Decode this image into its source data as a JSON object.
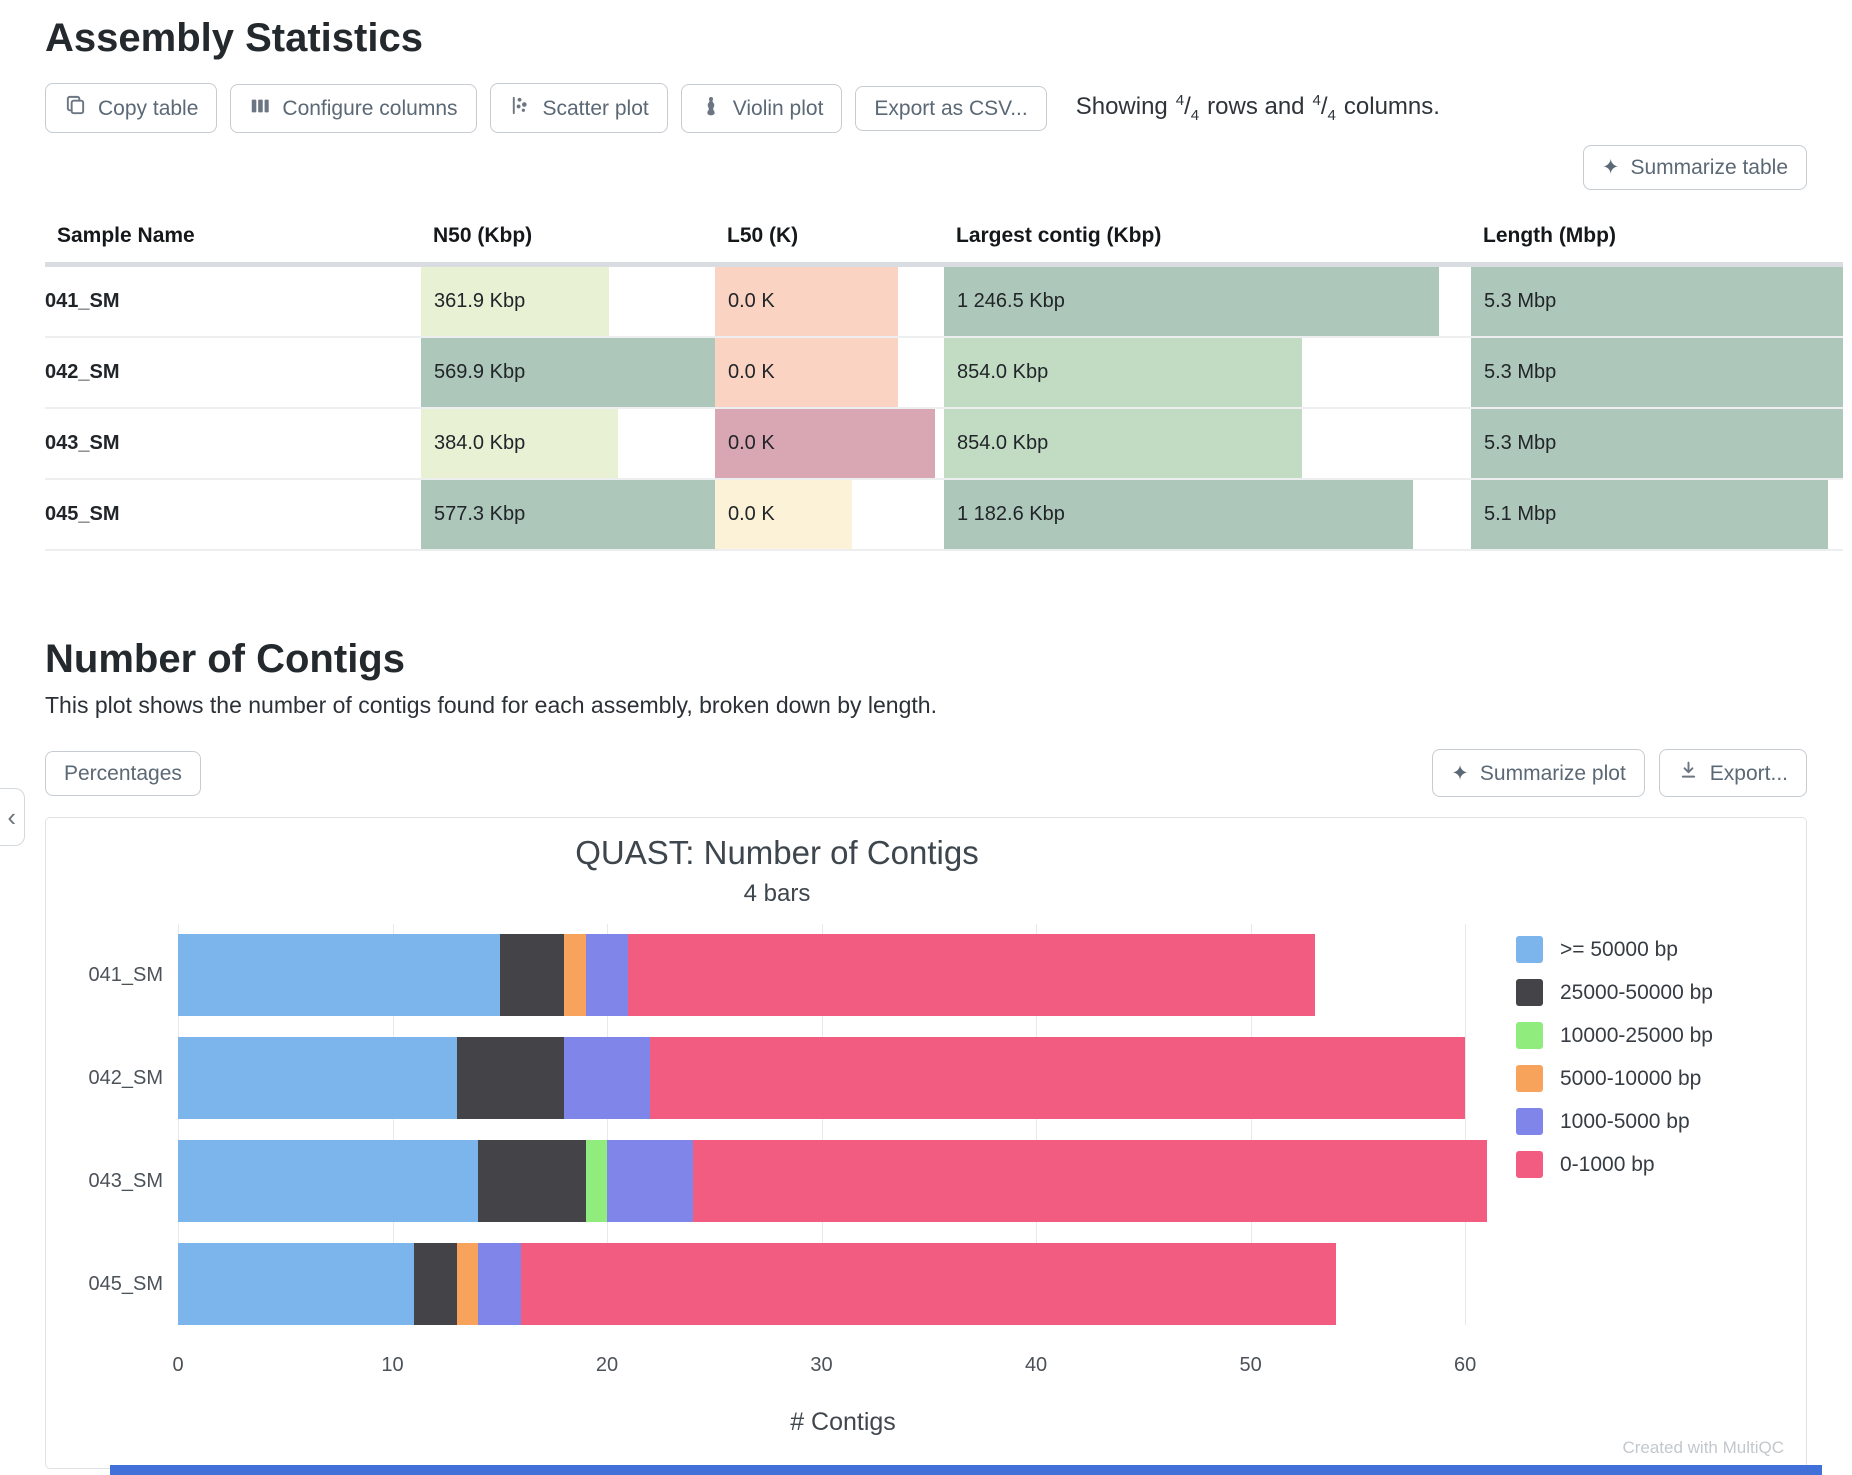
{
  "page": {
    "section1_title": "Assembly Statistics",
    "section2_title": "Number of Contigs",
    "section2_desc": "This plot shows the number of contigs found for each assembly, broken down by length.",
    "created_with": "Created with MultiQC"
  },
  "toolbar": {
    "copy_table": "Copy table",
    "configure_columns": "Configure columns",
    "scatter_plot": "Scatter plot",
    "violin_plot": "Violin plot",
    "export_csv": "Export as CSV...",
    "showing_prefix": "Showing",
    "rows_num": "4",
    "rows_den": "4",
    "rows_word": "rows and",
    "cols_num": "4",
    "cols_den": "4",
    "cols_word": "columns.",
    "summarize_table": "Summarize table",
    "sparkle_glyph": "✦"
  },
  "plot_toolbar": {
    "percentages": "Percentages",
    "summarize_plot": "Summarize plot",
    "export": "Export..."
  },
  "table": {
    "columns": [
      "Sample Name",
      "N50 (Kbp)",
      "L50 (K)",
      "Largest contig (Kbp)",
      "Length (Mbp)"
    ],
    "rows": [
      {
        "sample": "041_SM",
        "cells": [
          {
            "text": "361.9 Kbp",
            "fill": 64,
            "color": "#e9f1d5"
          },
          {
            "text": "0.0 K",
            "fill": 80,
            "color": "#fbd3c2"
          },
          {
            "text": "1 246.5 Kbp",
            "fill": 94,
            "color": "#adc7ba"
          },
          {
            "text": "5.3 Mbp",
            "fill": 100,
            "color": "#adc7ba"
          }
        ]
      },
      {
        "sample": "042_SM",
        "cells": [
          {
            "text": "569.9 Kbp",
            "fill": 100,
            "color": "#adc7ba"
          },
          {
            "text": "0.0 K",
            "fill": 80,
            "color": "#fbd3c2"
          },
          {
            "text": "854.0 Kbp",
            "fill": 68,
            "color": "#c2dcc4"
          },
          {
            "text": "5.3 Mbp",
            "fill": 100,
            "color": "#adc7ba"
          }
        ]
      },
      {
        "sample": "043_SM",
        "cells": [
          {
            "text": "384.0 Kbp",
            "fill": 67,
            "color": "#e9f1d5"
          },
          {
            "text": "0.0 K",
            "fill": 96,
            "color": "#d9a7b3"
          },
          {
            "text": "854.0 Kbp",
            "fill": 68,
            "color": "#c2dcc4"
          },
          {
            "text": "5.3 Mbp",
            "fill": 100,
            "color": "#adc7ba"
          }
        ]
      },
      {
        "sample": "045_SM",
        "cells": [
          {
            "text": "577.3 Kbp",
            "fill": 100,
            "color": "#adc7ba"
          },
          {
            "text": "0.0 K",
            "fill": 60,
            "color": "#fcf2d7"
          },
          {
            "text": "1 182.6 Kbp",
            "fill": 89,
            "color": "#adc7ba"
          },
          {
            "text": "5.1 Mbp",
            "fill": 96,
            "color": "#adc7ba"
          }
        ]
      }
    ]
  },
  "chart_data": {
    "type": "bar",
    "orientation": "horizontal",
    "stacked": true,
    "title": "QUAST: Number of Contigs",
    "subtitle": "4 bars",
    "xlabel": "# Contigs",
    "categories": [
      "041_SM",
      "042_SM",
      "043_SM",
      "045_SM"
    ],
    "series": [
      {
        "name": ">= 50000 bp",
        "color": "#7cb5ec",
        "values": [
          15,
          13,
          14,
          11
        ]
      },
      {
        "name": "25000-50000 bp",
        "color": "#434348",
        "values": [
          3,
          5,
          5,
          2
        ]
      },
      {
        "name": "10000-25000 bp",
        "color": "#90ed7d",
        "values": [
          0,
          0,
          1,
          0
        ]
      },
      {
        "name": "5000-10000 bp",
        "color": "#f7a35c",
        "values": [
          1,
          0,
          0,
          1
        ]
      },
      {
        "name": "1000-5000 bp",
        "color": "#8085e9",
        "values": [
          2,
          4,
          4,
          2
        ]
      },
      {
        "name": "0-1000 bp",
        "color": "#f15c80",
        "values": [
          32,
          38,
          37,
          38
        ]
      }
    ],
    "totals": [
      53,
      60,
      61,
      54
    ],
    "xticks": [
      0,
      10,
      20,
      30,
      40,
      50,
      60
    ],
    "xmax_draw": 62,
    "grid": true,
    "legend_position": "right"
  }
}
